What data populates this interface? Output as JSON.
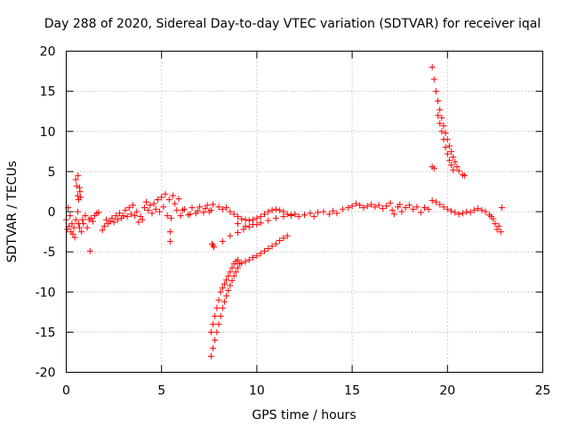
{
  "chart_data": {
    "type": "scatter",
    "title": "Day 288 of 2020, Sidereal Day-to-day VTEC variation (SDTVAR) for receiver iqal",
    "xlabel": "GPS time / hours",
    "ylabel": "SDTVAR / TECUs",
    "xlim": [
      0,
      25
    ],
    "ylim": [
      -20,
      20
    ],
    "xticks": [
      0,
      5,
      10,
      15,
      20,
      25
    ],
    "yticks": [
      -20,
      -15,
      -10,
      -5,
      0,
      5,
      10,
      15,
      20
    ],
    "grid": true,
    "marker": "+",
    "color": "#ff0000",
    "series": [
      {
        "name": "SDTVAR",
        "points": [
          [
            0.0,
            -1.0
          ],
          [
            0.05,
            -2.2
          ],
          [
            0.1,
            0.5
          ],
          [
            0.15,
            -1.8
          ],
          [
            0.2,
            -0.5
          ],
          [
            0.25,
            -2.5
          ],
          [
            0.3,
            -1.5
          ],
          [
            0.35,
            -2.8
          ],
          [
            0.4,
            -2.0
          ],
          [
            0.45,
            -3.2
          ],
          [
            0.5,
            -1.0
          ],
          [
            0.5,
            4.0
          ],
          [
            0.55,
            3.2
          ],
          [
            0.6,
            2.0
          ],
          [
            0.62,
            4.5
          ],
          [
            0.65,
            1.5
          ],
          [
            0.7,
            3.0
          ],
          [
            0.72,
            2.5
          ],
          [
            0.75,
            1.8
          ],
          [
            0.6,
            0.0
          ],
          [
            0.65,
            -1.5
          ],
          [
            0.7,
            -2.0
          ],
          [
            0.8,
            -2.5
          ],
          [
            0.85,
            -1.0
          ],
          [
            0.9,
            -1.5
          ],
          [
            1.0,
            -0.5
          ],
          [
            1.1,
            -2.0
          ],
          [
            1.2,
            -1.0
          ],
          [
            1.25,
            -4.9
          ],
          [
            1.3,
            -0.8
          ],
          [
            1.4,
            -1.2
          ],
          [
            1.5,
            -0.5
          ],
          [
            1.6,
            -0.2
          ],
          [
            1.7,
            -0.1
          ],
          [
            1.9,
            -2.3
          ],
          [
            2.0,
            -1.8
          ],
          [
            2.1,
            -1.0
          ],
          [
            2.2,
            -1.5
          ],
          [
            2.3,
            -1.2
          ],
          [
            2.4,
            -0.8
          ],
          [
            2.5,
            -1.3
          ],
          [
            2.6,
            -0.5
          ],
          [
            2.7,
            -1.0
          ],
          [
            2.8,
            -0.2
          ],
          [
            2.9,
            -0.8
          ],
          [
            3.0,
            -0.5
          ],
          [
            3.1,
            0.2
          ],
          [
            3.2,
            -0.6
          ],
          [
            3.3,
            0.5
          ],
          [
            3.4,
            -0.3
          ],
          [
            3.5,
            0.8
          ],
          [
            3.6,
            -0.5
          ],
          [
            3.7,
            0.0
          ],
          [
            3.8,
            -1.3
          ],
          [
            3.9,
            -0.6
          ],
          [
            4.0,
            -1.0
          ],
          [
            4.1,
            0.5
          ],
          [
            4.2,
            1.2
          ],
          [
            4.3,
            0.2
          ],
          [
            4.4,
            0.8
          ],
          [
            4.5,
            -0.2
          ],
          [
            4.6,
            1.0
          ],
          [
            4.7,
            0.3
          ],
          [
            4.8,
            1.5
          ],
          [
            4.9,
            0.0
          ],
          [
            5.0,
            1.8
          ],
          [
            5.1,
            0.6
          ],
          [
            5.2,
            2.2
          ],
          [
            5.3,
            -0.5
          ],
          [
            5.4,
            1.5
          ],
          [
            5.5,
            -0.8
          ],
          [
            5.6,
            2.0
          ],
          [
            5.7,
            1.0
          ],
          [
            5.8,
            0.2
          ],
          [
            5.9,
            1.6
          ],
          [
            5.45,
            -3.7
          ],
          [
            5.45,
            -2.5
          ],
          [
            6.0,
            -0.5
          ],
          [
            6.2,
            0.3
          ],
          [
            6.4,
            -0.4
          ],
          [
            6.6,
            0.5
          ],
          [
            6.8,
            -0.2
          ],
          [
            7.0,
            0.6
          ],
          [
            7.2,
            -0.1
          ],
          [
            7.4,
            0.8
          ],
          [
            7.6,
            0.2
          ],
          [
            7.7,
            0.9
          ],
          [
            7.5,
            0.0
          ],
          [
            7.3,
            0.4
          ],
          [
            6.9,
            0.1
          ],
          [
            6.5,
            -0.3
          ],
          [
            6.1,
            0.2
          ],
          [
            7.65,
            -4.0
          ],
          [
            7.75,
            -4.4
          ],
          [
            7.7,
            -4.2
          ],
          [
            8.0,
            0.6
          ],
          [
            8.2,
            0.3
          ],
          [
            8.4,
            0.5
          ],
          [
            8.6,
            0.0
          ],
          [
            8.8,
            -0.3
          ],
          [
            9.0,
            -0.6
          ],
          [
            9.2,
            -0.9
          ],
          [
            9.4,
            -1.0
          ],
          [
            9.6,
            -1.1
          ],
          [
            9.8,
            -1.0
          ],
          [
            10.0,
            -0.8
          ],
          [
            10.2,
            -0.6
          ],
          [
            10.4,
            -0.3
          ],
          [
            10.6,
            0.0
          ],
          [
            10.8,
            0.2
          ],
          [
            11.0,
            0.3
          ],
          [
            11.2,
            0.2
          ],
          [
            11.4,
            0.0
          ],
          [
            11.6,
            -0.3
          ],
          [
            11.8,
            -0.5
          ],
          [
            9.0,
            -1.5
          ],
          [
            9.4,
            -1.8
          ],
          [
            9.8,
            -1.6
          ],
          [
            10.2,
            -1.4
          ],
          [
            10.6,
            -1.1
          ],
          [
            11.0,
            -0.8
          ],
          [
            11.4,
            -0.6
          ],
          [
            11.8,
            -0.4
          ],
          [
            8.2,
            -3.7
          ],
          [
            8.6,
            -3.0
          ],
          [
            9.0,
            -2.6
          ],
          [
            9.3,
            -2.2
          ],
          [
            9.6,
            -1.9
          ],
          [
            10.0,
            -1.6
          ],
          [
            7.6,
            -18.0
          ],
          [
            7.7,
            -17.0
          ],
          [
            7.8,
            -16.0
          ],
          [
            7.9,
            -15.0
          ],
          [
            8.0,
            -14.0
          ],
          [
            8.1,
            -13.0
          ],
          [
            8.2,
            -12.0
          ],
          [
            8.3,
            -11.2
          ],
          [
            8.4,
            -10.5
          ],
          [
            8.5,
            -9.8
          ],
          [
            8.6,
            -9.2
          ],
          [
            8.7,
            -8.6
          ],
          [
            8.8,
            -8.0
          ],
          [
            8.9,
            -7.5
          ],
          [
            9.0,
            -7.0
          ],
          [
            9.1,
            -6.5
          ],
          [
            7.6,
            -15.0
          ],
          [
            7.7,
            -14.0
          ],
          [
            7.8,
            -13.0
          ],
          [
            7.9,
            -12.0
          ],
          [
            8.0,
            -11.0
          ],
          [
            8.1,
            -10.0
          ],
          [
            8.2,
            -9.5
          ],
          [
            8.3,
            -9.0
          ],
          [
            8.4,
            -8.5
          ],
          [
            8.5,
            -8.0
          ],
          [
            8.6,
            -7.5
          ],
          [
            8.7,
            -7.0
          ],
          [
            8.8,
            -6.5
          ],
          [
            8.9,
            -6.2
          ],
          [
            9.0,
            -6.0
          ],
          [
            9.2,
            -6.4
          ],
          [
            9.4,
            -6.2
          ],
          [
            9.6,
            -6.0
          ],
          [
            9.8,
            -5.7
          ],
          [
            10.0,
            -5.5
          ],
          [
            10.2,
            -5.2
          ],
          [
            10.4,
            -4.9
          ],
          [
            10.6,
            -4.6
          ],
          [
            10.8,
            -4.3
          ],
          [
            11.0,
            -4.0
          ],
          [
            11.2,
            -3.6
          ],
          [
            11.4,
            -3.3
          ],
          [
            11.6,
            -3.0
          ],
          [
            12.0,
            -0.3
          ],
          [
            12.2,
            -0.6
          ],
          [
            12.5,
            -0.4
          ],
          [
            12.8,
            -0.2
          ],
          [
            13.0,
            -0.6
          ],
          [
            13.2,
            -0.1
          ],
          [
            13.5,
            0.0
          ],
          [
            13.8,
            -0.3
          ],
          [
            14.0,
            0.1
          ],
          [
            14.2,
            -0.2
          ],
          [
            14.5,
            0.3
          ],
          [
            14.8,
            0.5
          ],
          [
            15.0,
            0.7
          ],
          [
            15.2,
            1.0
          ],
          [
            15.4,
            0.8
          ],
          [
            15.6,
            0.5
          ],
          [
            15.8,
            0.7
          ],
          [
            16.0,
            0.9
          ],
          [
            16.2,
            0.6
          ],
          [
            16.4,
            0.8
          ],
          [
            16.6,
            0.4
          ],
          [
            16.8,
            0.7
          ],
          [
            17.0,
            1.1
          ],
          [
            17.1,
            0.2
          ],
          [
            17.2,
            -0.3
          ],
          [
            17.4,
            0.6
          ],
          [
            17.5,
            0.9
          ],
          [
            17.6,
            0.0
          ],
          [
            17.8,
            0.5
          ],
          [
            18.0,
            0.8
          ],
          [
            18.2,
            0.3
          ],
          [
            18.4,
            0.6
          ],
          [
            18.6,
            -0.1
          ],
          [
            18.8,
            0.5
          ],
          [
            19.0,
            0.3
          ],
          [
            19.2,
            1.4
          ],
          [
            19.4,
            1.2
          ],
          [
            19.6,
            0.9
          ],
          [
            19.8,
            0.6
          ],
          [
            20.0,
            0.3
          ],
          [
            20.2,
            0.1
          ],
          [
            20.4,
            -0.1
          ],
          [
            20.6,
            -0.3
          ],
          [
            20.8,
            -0.2
          ],
          [
            21.0,
            0.0
          ],
          [
            21.2,
            -0.1
          ],
          [
            21.4,
            0.2
          ],
          [
            21.6,
            0.4
          ],
          [
            21.8,
            0.2
          ],
          [
            22.0,
            0.0
          ],
          [
            22.2,
            -0.4
          ],
          [
            22.4,
            -0.9
          ],
          [
            22.5,
            -1.5
          ],
          [
            22.6,
            -2.2
          ],
          [
            22.7,
            -1.8
          ],
          [
            22.8,
            -2.5
          ],
          [
            22.85,
            0.5
          ],
          [
            22.3,
            -0.6
          ],
          [
            19.2,
            5.6
          ],
          [
            19.3,
            5.4
          ],
          [
            19.2,
            18.0
          ],
          [
            19.3,
            16.5
          ],
          [
            19.4,
            15.0
          ],
          [
            19.5,
            13.8
          ],
          [
            19.6,
            12.7
          ],
          [
            19.7,
            11.7
          ],
          [
            19.8,
            10.7
          ],
          [
            19.9,
            9.8
          ],
          [
            20.0,
            9.0
          ],
          [
            20.1,
            8.2
          ],
          [
            20.2,
            7.5
          ],
          [
            20.3,
            6.8
          ],
          [
            20.4,
            6.2
          ],
          [
            20.5,
            5.6
          ],
          [
            20.6,
            5.1
          ],
          [
            20.8,
            4.6
          ],
          [
            20.9,
            4.5
          ],
          [
            19.5,
            12.0
          ],
          [
            19.6,
            11.0
          ],
          [
            19.7,
            10.0
          ],
          [
            19.8,
            9.0
          ],
          [
            19.9,
            8.0
          ],
          [
            20.0,
            7.2
          ],
          [
            20.1,
            6.4
          ],
          [
            20.2,
            5.8
          ],
          [
            20.3,
            5.2
          ]
        ]
      }
    ]
  }
}
